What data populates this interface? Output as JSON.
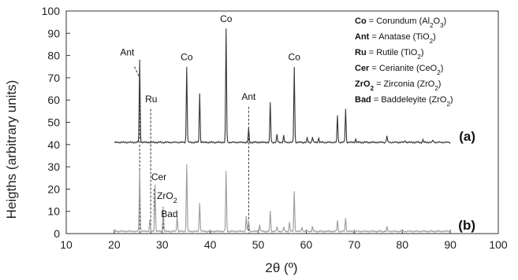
{
  "chart_data": {
    "type": "line",
    "xlabel": "2θ (º)",
    "ylabel": "Heigths (arbitrary units)",
    "xlim": [
      10,
      100
    ],
    "ylim": [
      0,
      100
    ],
    "x_ticks": [
      10,
      20,
      30,
      40,
      50,
      60,
      70,
      80,
      90,
      100
    ],
    "y_ticks": [
      0,
      10,
      20,
      30,
      40,
      50,
      60,
      70,
      80,
      90,
      100
    ],
    "grid": false,
    "legend_placement": "top-right",
    "legend": [
      {
        "key": "Co",
        "rest": " = Corundum (Al",
        "sub": "2",
        "rest2": "O",
        "sub2": "3",
        "end": ")"
      },
      {
        "key": "Ant",
        "rest": " = Anatase (TiO",
        "sub": "2",
        "rest2": "",
        "sub2": "",
        "end": ")"
      },
      {
        "key": "Ru",
        "rest": " = Rutile (TiO",
        "sub": "2",
        "rest2": "",
        "sub2": "",
        "end": ")"
      },
      {
        "key": "Cer",
        "rest": " = Cerianite (CeO",
        "sub": "2",
        "rest2": "",
        "sub2": "",
        "end": ")"
      },
      {
        "key": "ZrO",
        "keysub": "2",
        "rest": " = Zirconia (ZrO",
        "sub": "2",
        "rest2": "",
        "sub2": "",
        "end": ")"
      },
      {
        "key": "Bad",
        "rest": " = Baddeleyite (ZrO",
        "sub": "2",
        "rest2": "",
        "sub2": "",
        "end": ")"
      }
    ],
    "series": [
      {
        "panel_label": "(a)",
        "color": "#333333",
        "baseline": 41,
        "x_range": [
          20,
          90
        ],
        "peaks": [
          [
            25.3,
            78
          ],
          [
            35.1,
            75
          ],
          [
            37.8,
            63
          ],
          [
            43.3,
            92
          ],
          [
            48.0,
            47
          ],
          [
            52.5,
            59
          ],
          [
            53.9,
            44.5
          ],
          [
            55.3,
            44
          ],
          [
            57.5,
            75
          ],
          [
            60.2,
            43
          ],
          [
            61.3,
            43.5
          ],
          [
            62.6,
            43
          ],
          [
            66.5,
            53
          ],
          [
            68.2,
            56
          ],
          [
            70.3,
            42.5
          ],
          [
            76.8,
            44
          ],
          [
            80.6,
            42
          ],
          [
            84.3,
            42
          ],
          [
            86.4,
            42
          ]
        ]
      },
      {
        "panel_label": "(b)",
        "color": "#9a9a9a",
        "baseline": 1,
        "x_range": [
          20,
          90
        ],
        "peaks": [
          [
            25.3,
            29
          ],
          [
            27.4,
            6
          ],
          [
            28.5,
            22
          ],
          [
            30.2,
            12
          ],
          [
            33.1,
            8
          ],
          [
            35.1,
            31
          ],
          [
            37.8,
            14
          ],
          [
            43.3,
            28
          ],
          [
            47.5,
            8
          ],
          [
            48.0,
            6
          ],
          [
            50.3,
            4
          ],
          [
            52.5,
            10
          ],
          [
            53.9,
            3
          ],
          [
            55.3,
            3
          ],
          [
            56.5,
            5
          ],
          [
            57.5,
            19
          ],
          [
            59.1,
            3
          ],
          [
            61.3,
            3
          ],
          [
            66.5,
            6
          ],
          [
            68.2,
            7
          ],
          [
            76.8,
            3
          ]
        ]
      }
    ],
    "annotations": [
      {
        "text": "Co",
        "x": 35.1,
        "y": 78
      },
      {
        "text": "Co",
        "x": 43.3,
        "y": 95
      },
      {
        "text": "Co",
        "x": 57.5,
        "y": 78
      },
      {
        "text": "Ant",
        "x": 22.7,
        "y": 80
      },
      {
        "text": "Ru",
        "x": 27.7,
        "y": 59
      },
      {
        "text": "Ant",
        "x": 48.0,
        "y": 60
      },
      {
        "text": "Cer",
        "x": 29.3,
        "y": 24
      },
      {
        "text": "ZrO",
        "sub": "2",
        "x": 31.0,
        "y": 15.5
      },
      {
        "text": "Bad",
        "x": 31.5,
        "y": 7.5
      }
    ],
    "dashed_lines": [
      {
        "x1": 24.2,
        "y1": 75,
        "x2": 25.3,
        "y2": 70
      },
      {
        "x1": 25.3,
        "y1": 70,
        "x2": 25.3,
        "y2": 0
      },
      {
        "x1": 27.6,
        "y1": 56,
        "x2": 27.6,
        "y2": 0
      },
      {
        "x1": 48.0,
        "y1": 57,
        "x2": 48.0,
        "y2": 0
      },
      {
        "x1": 28.3,
        "y1": 20,
        "x2": 28.3,
        "y2": 3
      },
      {
        "x1": 30.2,
        "y1": 12,
        "x2": 30.2,
        "y2": 2
      }
    ]
  }
}
